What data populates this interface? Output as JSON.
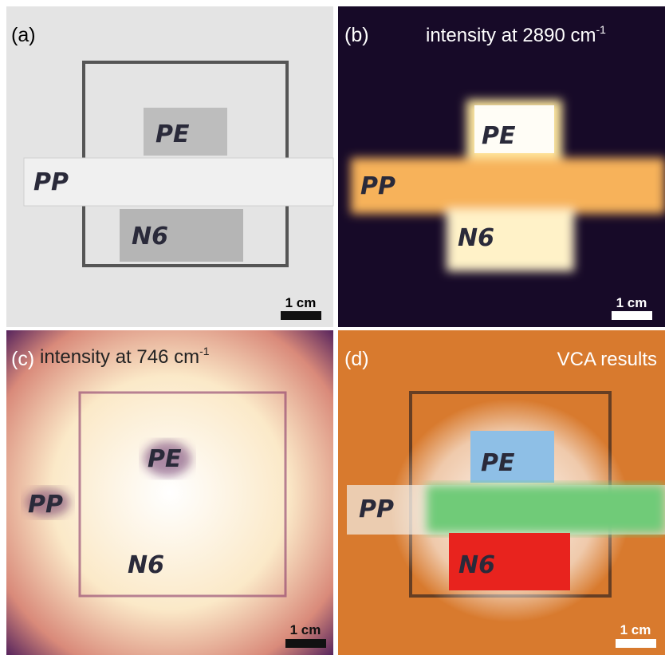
{
  "panels": [
    {
      "label": "(a)",
      "scale_bar": "1 cm",
      "samples": [
        "PE",
        "PP",
        "N6"
      ]
    },
    {
      "label": "(b)",
      "title": "intensity at 2890 cm",
      "title_sup": "-1",
      "scale_bar": "1 cm",
      "samples": [
        "PE",
        "PP",
        "N6"
      ]
    },
    {
      "label": "(c)",
      "title": "intensity at 746 cm",
      "title_sup": "-1",
      "scale_bar": "1 cm",
      "samples": [
        "PE",
        "PP",
        "N6"
      ]
    },
    {
      "label": "(d)",
      "title": "VCA results",
      "scale_bar": "1 cm",
      "samples": [
        "PE",
        "PP",
        "N6"
      ]
    }
  ]
}
